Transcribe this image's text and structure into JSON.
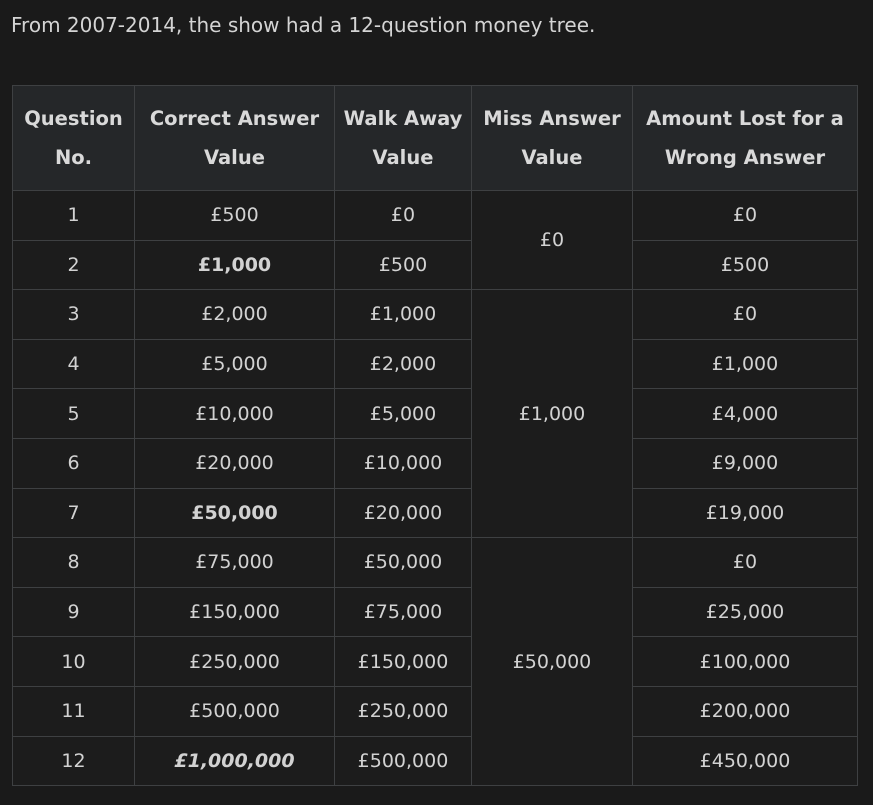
{
  "intro": "From 2007-2014, the show had a 12-question money tree.",
  "headers": [
    [
      "Question",
      "No."
    ],
    [
      "Correct Answer",
      "Value"
    ],
    [
      "Walk Away",
      "Value"
    ],
    [
      "Miss Answer",
      "Value"
    ],
    [
      "Amount Lost for a",
      "Wrong Answer"
    ]
  ],
  "rows": [
    {
      "q": "1",
      "correct": "£500",
      "walk": "£0",
      "lost": "£0",
      "style": ""
    },
    {
      "q": "2",
      "correct": "£1,000",
      "walk": "£500",
      "lost": "£500",
      "style": "bold"
    },
    {
      "q": "3",
      "correct": "£2,000",
      "walk": "£1,000",
      "lost": "£0",
      "style": ""
    },
    {
      "q": "4",
      "correct": "£5,000",
      "walk": "£2,000",
      "lost": "£1,000",
      "style": ""
    },
    {
      "q": "5",
      "correct": "£10,000",
      "walk": "£5,000",
      "lost": "£4,000",
      "style": ""
    },
    {
      "q": "6",
      "correct": "£20,000",
      "walk": "£10,000",
      "lost": "£9,000",
      "style": ""
    },
    {
      "q": "7",
      "correct": "£50,000",
      "walk": "£20,000",
      "lost": "£19,000",
      "style": "bold"
    },
    {
      "q": "8",
      "correct": "£75,000",
      "walk": "£50,000",
      "lost": "£0",
      "style": ""
    },
    {
      "q": "9",
      "correct": "£150,000",
      "walk": "£75,000",
      "lost": "£25,000",
      "style": ""
    },
    {
      "q": "10",
      "correct": "£250,000",
      "walk": "£150,000",
      "lost": "£100,000",
      "style": ""
    },
    {
      "q": "11",
      "correct": "£500,000",
      "walk": "£250,000",
      "lost": "£200,000",
      "style": ""
    },
    {
      "q": "12",
      "correct": "£1,000,000",
      "walk": "£500,000",
      "lost": "£450,000",
      "style": "bolditalic"
    }
  ],
  "miss_values": [
    {
      "value": "£0",
      "first_row": 1,
      "rowspan": 2
    },
    {
      "value": "£1,000",
      "first_row": 3,
      "rowspan": 5
    },
    {
      "value": "£50,000",
      "first_row": 8,
      "rowspan": 5
    }
  ]
}
